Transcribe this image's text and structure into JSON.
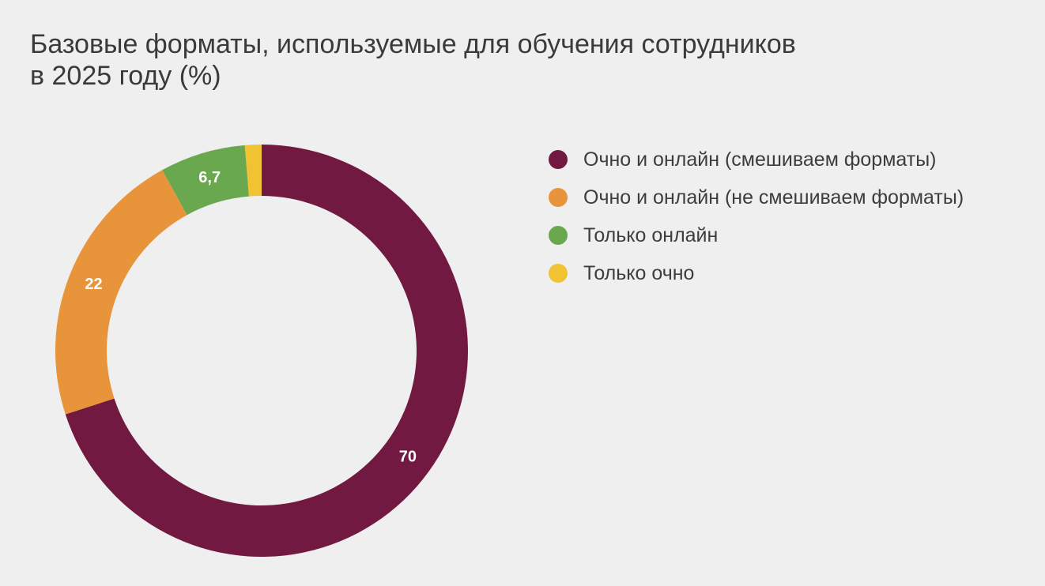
{
  "chart_data": {
    "type": "pie",
    "donut": true,
    "title_lines": [
      "Базовые форматы, используемые для обучения сотрудников",
      "в 2025 году (%)"
    ],
    "legend_position": "right",
    "slices": [
      {
        "name": "Очно и онлайн (смешиваем форматы)",
        "value": 70,
        "label": "70",
        "color": "#721942"
      },
      {
        "name": "Очно и онлайн (не смешиваем форматы)",
        "value": 22,
        "label": "22",
        "color": "#e8943a"
      },
      {
        "name": "Только онлайн",
        "value": 6.7,
        "label": "6,7",
        "color": "#6aa84f"
      },
      {
        "name": "Только очно",
        "value": 1.3,
        "label": "",
        "color": "#f1c232"
      }
    ]
  }
}
